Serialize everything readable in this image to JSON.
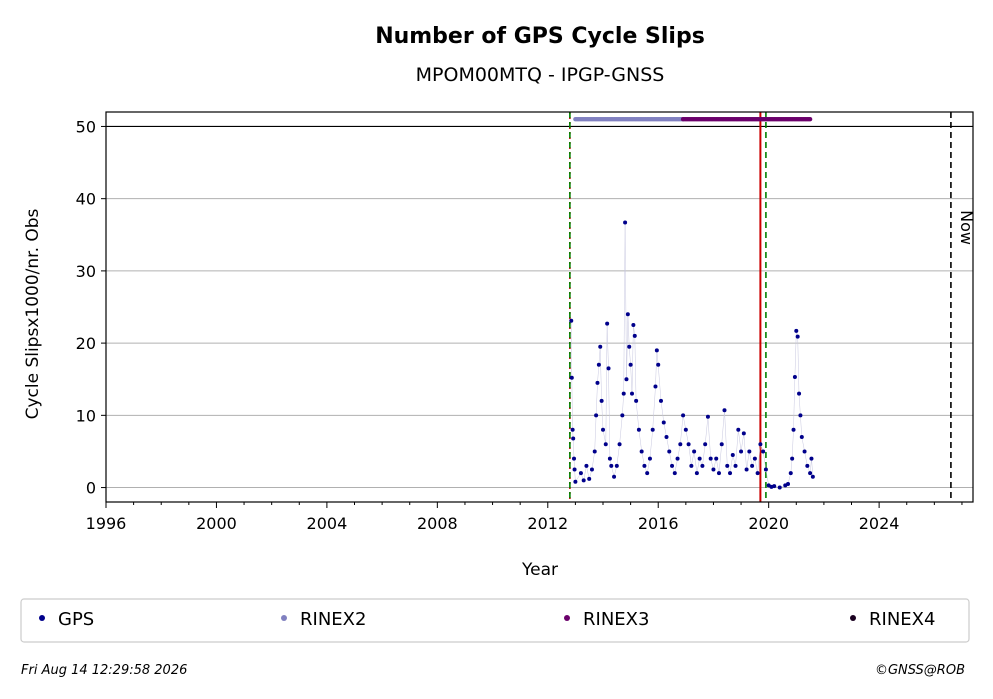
{
  "chart_data": {
    "type": "scatter",
    "title": "Number of GPS Cycle Slips",
    "subtitle": "MPOM00MTQ - IPGP-GNSS",
    "xlabel": "Year",
    "ylabel": "Cycle Slipsx1000/nr. Obs",
    "xlim": [
      1996,
      2027.4
    ],
    "ylim": [
      -2,
      52
    ],
    "xticks": [
      "1996",
      "2000",
      "2004",
      "2008",
      "2012",
      "2016",
      "2020",
      "2024"
    ],
    "yticks": [
      "0",
      "10",
      "20",
      "30",
      "40",
      "50"
    ],
    "grid": "horizontal",
    "legend_position": "bottom",
    "legend": [
      {
        "name": "GPS",
        "color": "#00008b"
      },
      {
        "name": "RINEX2",
        "color": "#8080c0"
      },
      {
        "name": "RINEX3",
        "color": "#6b006b"
      },
      {
        "name": "RINEX4",
        "color": "#1a0020"
      }
    ],
    "series": [
      {
        "name": "GPS",
        "color": "#00008b",
        "points": [
          [
            2012.85,
            23.1
          ],
          [
            2012.87,
            15.2
          ],
          [
            2012.9,
            8.0
          ],
          [
            2012.92,
            6.8
          ],
          [
            2012.95,
            4.0
          ],
          [
            2012.97,
            2.5
          ],
          [
            2013.0,
            0.8
          ],
          [
            2013.2,
            2.0
          ],
          [
            2013.3,
            1.0
          ],
          [
            2013.4,
            3.0
          ],
          [
            2013.5,
            1.2
          ],
          [
            2013.6,
            2.5
          ],
          [
            2013.7,
            5.0
          ],
          [
            2013.75,
            10.0
          ],
          [
            2013.8,
            14.5
          ],
          [
            2013.85,
            17.0
          ],
          [
            2013.9,
            19.5
          ],
          [
            2013.95,
            12.0
          ],
          [
            2014.0,
            8.0
          ],
          [
            2014.1,
            6.0
          ],
          [
            2014.15,
            22.7
          ],
          [
            2014.2,
            16.5
          ],
          [
            2014.25,
            4.0
          ],
          [
            2014.3,
            3.0
          ],
          [
            2014.4,
            1.5
          ],
          [
            2014.5,
            3.0
          ],
          [
            2014.6,
            6.0
          ],
          [
            2014.7,
            10.0
          ],
          [
            2014.75,
            13.0
          ],
          [
            2014.8,
            36.7
          ],
          [
            2014.85,
            15.0
          ],
          [
            2014.9,
            24.0
          ],
          [
            2014.95,
            19.5
          ],
          [
            2015.0,
            17.0
          ],
          [
            2015.05,
            13.0
          ],
          [
            2015.1,
            22.5
          ],
          [
            2015.15,
            21.0
          ],
          [
            2015.2,
            12.0
          ],
          [
            2015.3,
            8.0
          ],
          [
            2015.4,
            5.0
          ],
          [
            2015.5,
            3.0
          ],
          [
            2015.6,
            2.0
          ],
          [
            2015.7,
            4.0
          ],
          [
            2015.8,
            8.0
          ],
          [
            2015.9,
            14.0
          ],
          [
            2015.95,
            19.0
          ],
          [
            2016.0,
            17.0
          ],
          [
            2016.1,
            12.0
          ],
          [
            2016.2,
            9.0
          ],
          [
            2016.3,
            7.0
          ],
          [
            2016.4,
            5.0
          ],
          [
            2016.5,
            3.0
          ],
          [
            2016.6,
            2.0
          ],
          [
            2016.7,
            4.0
          ],
          [
            2016.8,
            6.0
          ],
          [
            2016.9,
            10.0
          ],
          [
            2017.0,
            8.0
          ],
          [
            2017.1,
            6.0
          ],
          [
            2017.2,
            3.0
          ],
          [
            2017.3,
            5.0
          ],
          [
            2017.4,
            2.0
          ],
          [
            2017.5,
            4.0
          ],
          [
            2017.6,
            3.0
          ],
          [
            2017.7,
            6.0
          ],
          [
            2017.8,
            9.8
          ],
          [
            2017.9,
            4.0
          ],
          [
            2018.0,
            2.5
          ],
          [
            2018.1,
            4.0
          ],
          [
            2018.2,
            2.0
          ],
          [
            2018.3,
            6.0
          ],
          [
            2018.4,
            10.7
          ],
          [
            2018.5,
            3.0
          ],
          [
            2018.6,
            2.0
          ],
          [
            2018.7,
            4.5
          ],
          [
            2018.8,
            3.0
          ],
          [
            2018.9,
            8.0
          ],
          [
            2019.0,
            5.0
          ],
          [
            2019.1,
            7.5
          ],
          [
            2019.2,
            2.5
          ],
          [
            2019.3,
            5.0
          ],
          [
            2019.4,
            3.0
          ],
          [
            2019.5,
            4.0
          ],
          [
            2019.6,
            2.0
          ],
          [
            2019.7,
            6.0
          ],
          [
            2019.8,
            5.0
          ],
          [
            2019.9,
            2.5
          ],
          [
            2020.0,
            0.3
          ],
          [
            2020.1,
            0.1
          ],
          [
            2020.2,
            0.2
          ],
          [
            2020.4,
            0.0
          ],
          [
            2020.6,
            0.3
          ],
          [
            2020.7,
            0.5
          ],
          [
            2020.8,
            2.0
          ],
          [
            2020.85,
            4.0
          ],
          [
            2020.9,
            8.0
          ],
          [
            2020.95,
            15.3
          ],
          [
            2021.0,
            21.7
          ],
          [
            2021.05,
            20.9
          ],
          [
            2021.1,
            13.0
          ],
          [
            2021.15,
            10.0
          ],
          [
            2021.2,
            7.0
          ],
          [
            2021.3,
            5.0
          ],
          [
            2021.4,
            3.0
          ],
          [
            2021.5,
            2.0
          ],
          [
            2021.55,
            4.0
          ],
          [
            2021.6,
            1.5
          ]
        ]
      },
      {
        "name": "RINEX2",
        "color": "#8080c0",
        "range": [
          2013.0,
          2016.9
        ]
      },
      {
        "name": "RINEX3",
        "color": "#6b006b",
        "range": [
          2016.9,
          2021.5
        ]
      }
    ],
    "vertical_lines": [
      {
        "x": 2012.8,
        "color": "#cc0000",
        "style": "dotted"
      },
      {
        "x": 2012.8,
        "color": "#008000",
        "style": "dashed"
      },
      {
        "x": 2019.7,
        "color": "#cc0000",
        "style": "solid"
      },
      {
        "x": 2019.9,
        "color": "#008000",
        "style": "dashed"
      },
      {
        "x": 2026.6,
        "color": "#000000",
        "style": "dashed"
      }
    ],
    "annotations": [
      {
        "text": "Now",
        "x": 2026.6,
        "y": 36
      }
    ]
  },
  "footer": {
    "left": "Fri Aug 14 12:29:58 2026",
    "right": "©GNSS@ROB"
  }
}
